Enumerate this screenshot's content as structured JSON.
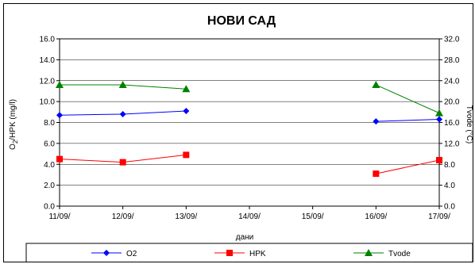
{
  "chart_data": {
    "type": "line",
    "title": "НОВИ САД",
    "xlabel": "дани",
    "ylabel": "O2/HPK (mg/l)",
    "ylabel_base": "O",
    "ylabel_sub": "2",
    "ylabel_rest": "/HPK (mg/l)",
    "y2label": "Tvode (°C)",
    "categories": [
      "11/09/",
      "12/09/",
      "13/09/",
      "14/09/",
      "15/09/",
      "16/09/",
      "17/09/"
    ],
    "ylim": [
      0,
      16
    ],
    "y_ticks": [
      "0.0",
      "2.0",
      "4.0",
      "6.0",
      "8.0",
      "10.0",
      "12.0",
      "14.0",
      "16.0"
    ],
    "y2lim": [
      0,
      32
    ],
    "y2_ticks": [
      "0.0",
      "4.0",
      "8.0",
      "12.0",
      "16.0",
      "20.0",
      "24.0",
      "28.0",
      "32.0"
    ],
    "grid": "horizontal",
    "legend_position": "bottom",
    "series": [
      {
        "name": "O2",
        "axis": "left",
        "color": "#0000ff",
        "marker": "diamond",
        "values": [
          8.7,
          8.8,
          9.1,
          null,
          null,
          8.1,
          8.3
        ]
      },
      {
        "name": "HPK",
        "axis": "left",
        "color": "#ff0000",
        "marker": "square",
        "values": [
          4.5,
          4.2,
          4.9,
          null,
          null,
          3.1,
          4.4
        ]
      },
      {
        "name": "Tvode",
        "axis": "right",
        "color": "#008000",
        "marker": "triangle",
        "values": [
          23.2,
          23.2,
          22.4,
          null,
          null,
          23.2,
          17.8
        ]
      }
    ]
  }
}
